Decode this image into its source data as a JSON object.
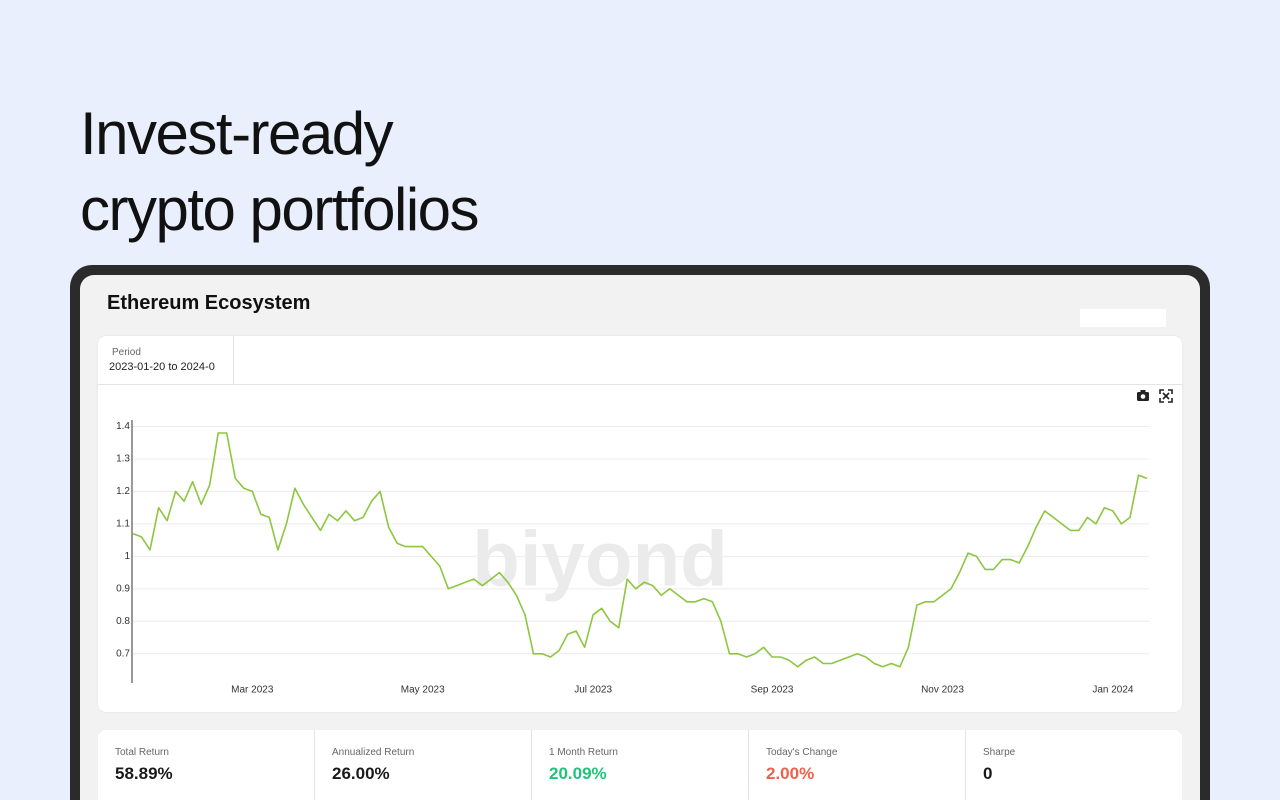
{
  "header": {
    "title_lines": [
      "Invest-ready",
      "crypto portfolios"
    ]
  },
  "portfolio": {
    "title": "Ethereum Ecosystem",
    "period": {
      "label": "Period",
      "value": "2023-01-20 to 2024-0"
    },
    "watermark": "biyond"
  },
  "chart_data": {
    "type": "line",
    "color": "#8dc63f",
    "grid": true,
    "categories": [
      null,
      null,
      null,
      null,
      null,
      null,
      null,
      null,
      null,
      null,
      null,
      null,
      null,
      null,
      "Mar 2023",
      null,
      null,
      null,
      null,
      null,
      null,
      null,
      null,
      null,
      null,
      null,
      null,
      null,
      null,
      null,
      null,
      null,
      null,
      null,
      "May 2023",
      null,
      null,
      null,
      null,
      null,
      null,
      null,
      null,
      null,
      null,
      null,
      null,
      null,
      null,
      null,
      null,
      null,
      null,
      null,
      "Jul 2023",
      null,
      null,
      null,
      null,
      null,
      null,
      null,
      null,
      null,
      null,
      null,
      null,
      null,
      null,
      null,
      null,
      null,
      null,
      null,
      null,
      "Sep 2023",
      null,
      null,
      null,
      null,
      null,
      null,
      null,
      null,
      null,
      null,
      null,
      null,
      null,
      null,
      null,
      null,
      null,
      null,
      null,
      "Nov 2023",
      null,
      null,
      null,
      null,
      null,
      null,
      null,
      null,
      null,
      null,
      null,
      null,
      null,
      null,
      null,
      null,
      null,
      null,
      null,
      "Jan 2024",
      null,
      null,
      null,
      null
    ],
    "values": [
      1.07,
      1.06,
      1.02,
      1.15,
      1.11,
      1.2,
      1.17,
      1.23,
      1.16,
      1.22,
      1.38,
      1.38,
      1.24,
      1.21,
      1.2,
      1.13,
      1.12,
      1.02,
      1.1,
      1.21,
      1.16,
      1.12,
      1.08,
      1.13,
      1.11,
      1.14,
      1.11,
      1.12,
      1.17,
      1.2,
      1.09,
      1.04,
      1.03,
      1.03,
      1.03,
      1.0,
      0.97,
      0.9,
      0.91,
      0.92,
      0.93,
      0.91,
      0.93,
      0.95,
      0.92,
      0.88,
      0.82,
      0.7,
      0.7,
      0.69,
      0.71,
      0.76,
      0.77,
      0.72,
      0.82,
      0.84,
      0.8,
      0.78,
      0.93,
      0.9,
      0.92,
      0.91,
      0.88,
      0.9,
      0.88,
      0.86,
      0.86,
      0.87,
      0.86,
      0.8,
      0.7,
      0.7,
      0.69,
      0.7,
      0.72,
      0.69,
      0.69,
      0.68,
      0.66,
      0.68,
      0.69,
      0.67,
      0.67,
      0.68,
      0.69,
      0.7,
      0.69,
      0.67,
      0.66,
      0.67,
      0.66,
      0.72,
      0.85,
      0.86,
      0.86,
      0.88,
      0.9,
      0.95,
      1.01,
      1.0,
      0.96,
      0.96,
      0.99,
      0.99,
      0.98,
      1.03,
      1.09,
      1.14,
      1.12,
      1.1,
      1.08,
      1.08,
      1.12,
      1.1,
      1.15,
      1.14,
      1.1,
      1.12,
      1.25,
      1.24
    ],
    "ylim": [
      0.61,
      1.42
    ],
    "yticks": [
      0.7,
      0.8,
      0.9,
      1,
      1.1,
      1.2,
      1.3,
      1.4
    ]
  },
  "stats": [
    {
      "label": "Total Return",
      "value": "58.89%",
      "color": "#1a1a1a"
    },
    {
      "label": "Annualized Return",
      "value": "26.00%",
      "color": "#1a1a1a"
    },
    {
      "label": "1 Month Return",
      "value": "20.09%",
      "color": "#1fc47a"
    },
    {
      "label": "Today's Change",
      "value": "2.00%",
      "color": "#f0604d"
    },
    {
      "label": "Sharpe",
      "value": "0",
      "color": "#1a1a1a"
    }
  ]
}
